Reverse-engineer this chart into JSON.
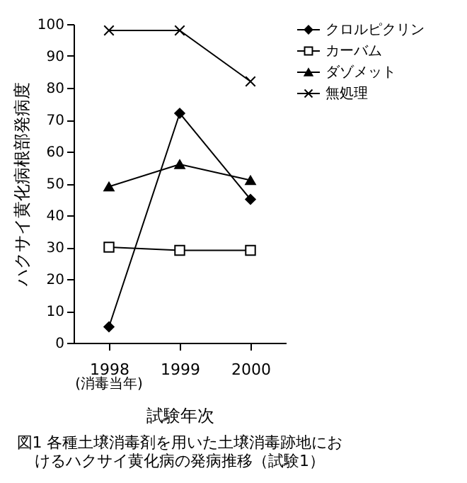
{
  "chart_data": {
    "type": "line",
    "title": "図1 各種土壌消毒剤を用いた土壌消毒跡地におけるハクサイ黄化病の発病推移（試験1）",
    "xlabel": "試験年次",
    "ylabel": "ハクサイ黄化病根部発病度",
    "categories": [
      "1998",
      "1999",
      "2000"
    ],
    "series": [
      {
        "name": "クロルピクリン",
        "color": "#000000",
        "marker": "diamond",
        "values": [
          5,
          72,
          45
        ]
      },
      {
        "name": "カーバム",
        "color": "#000000",
        "marker": "square",
        "values": [
          30,
          29,
          29
        ]
      },
      {
        "name": "ダゾメット",
        "color": "#000000",
        "marker": "triangle",
        "values": [
          49,
          56,
          51
        ]
      },
      {
        "name": "無処理",
        "color": "#000000",
        "marker": "cross",
        "values": [
          98,
          98,
          82
        ]
      }
    ],
    "annotations": [
      "(消毒当年)"
    ],
    "ylim": [
      0,
      100
    ],
    "yticks": [
      0,
      10,
      20,
      30,
      40,
      50,
      60,
      70,
      80,
      90,
      100
    ],
    "grid": false,
    "legend": "top right",
    "line_style": "solid"
  }
}
